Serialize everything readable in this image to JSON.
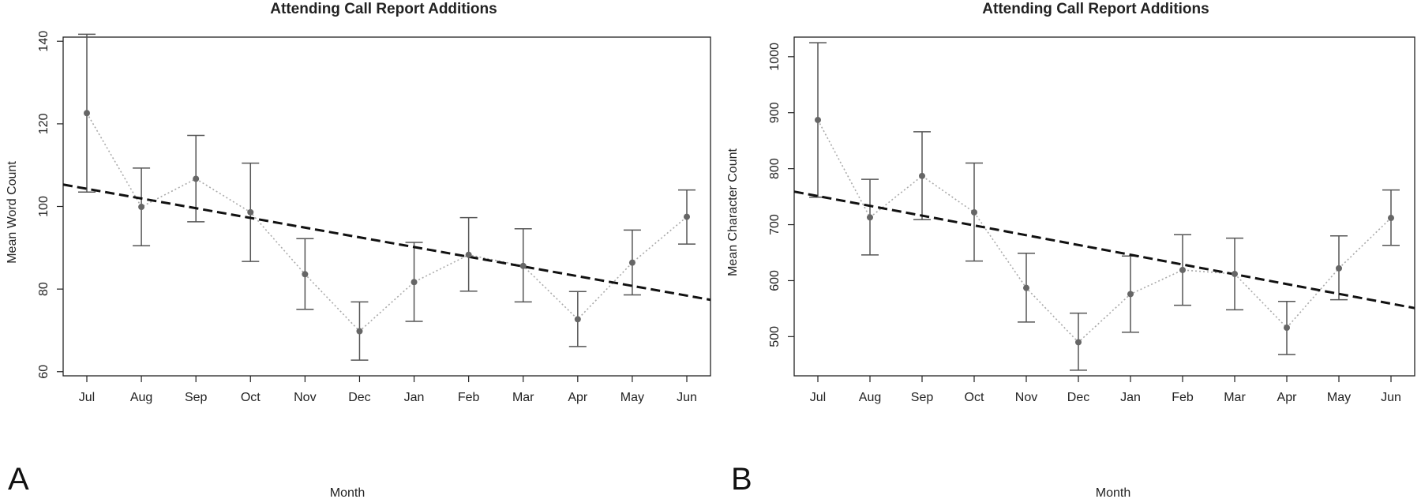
{
  "chart_data": [
    {
      "panel": "A",
      "type": "line",
      "title": "Attending Call Report Additions",
      "xlabel": "Month",
      "ylabel": "Mean Word Count",
      "categories": [
        "Jul",
        "Aug",
        "Sep",
        "Oct",
        "Nov",
        "Dec",
        "Jan",
        "Feb",
        "Mar",
        "Apr",
        "May",
        "Jun"
      ],
      "ylim": [
        59,
        141
      ],
      "yticks": [
        60,
        80,
        100,
        120,
        140
      ],
      "series": [
        {
          "values": [
            122.6,
            99.9,
            106.7,
            98.6,
            83.6,
            69.8,
            81.7,
            88.3,
            85.6,
            72.7,
            86.4,
            97.5
          ],
          "error_low": [
            103.5,
            90.5,
            96.3,
            86.7,
            75.1,
            62.8,
            72.2,
            79.5,
            76.9,
            66.1,
            78.6,
            90.9
          ],
          "error_high": [
            141.7,
            109.3,
            117.2,
            110.5,
            92.2,
            76.9,
            91.3,
            97.3,
            94.6,
            79.4,
            94.3,
            104.0
          ]
        }
      ],
      "trend_line": {
        "start": 105.3,
        "end": 77.4
      },
      "grid": false
    },
    {
      "panel": "B",
      "type": "line",
      "title": "Attending Call Report Additions",
      "xlabel": "Month",
      "ylabel": "Mean Character Count",
      "categories": [
        "Jul",
        "Aug",
        "Sep",
        "Oct",
        "Nov",
        "Dec",
        "Jan",
        "Feb",
        "Mar",
        "Apr",
        "May",
        "Jun"
      ],
      "ylim": [
        430,
        1035
      ],
      "yticks": [
        500,
        600,
        700,
        800,
        900,
        1000
      ],
      "series": [
        {
          "values": [
            887,
            713,
            787,
            722,
            587,
            490,
            576,
            619,
            612,
            516,
            622,
            712
          ],
          "error_low": [
            749,
            646,
            709,
            635,
            526,
            440,
            508,
            556,
            548,
            468,
            566,
            663
          ],
          "error_high": [
            1025,
            781,
            866,
            810,
            649,
            542,
            644,
            682,
            676,
            563,
            680,
            762
          ]
        }
      ],
      "trend_line": {
        "start": 759,
        "end": 551
      },
      "grid": false
    }
  ],
  "colors": {
    "point": "#666666",
    "error_bar": "#555555",
    "dotted_line": "#aaaaaa",
    "trend_line": "#111111",
    "axis": "#222222"
  }
}
